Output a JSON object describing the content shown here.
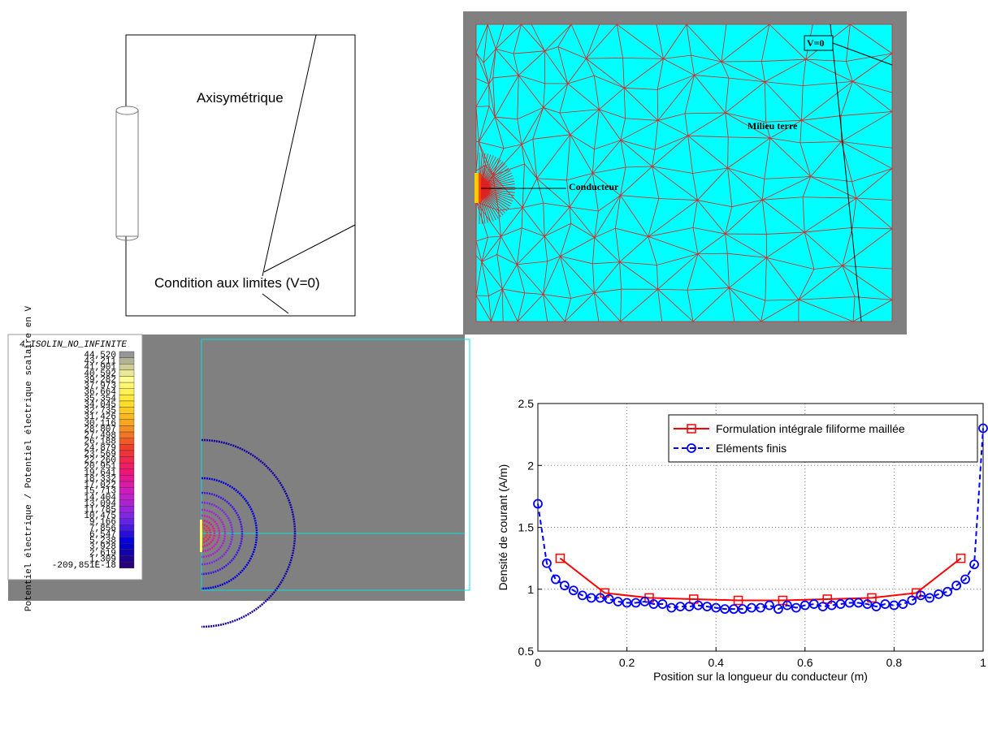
{
  "diagram": {
    "title": "Axisymétrique",
    "boundary_label": "Condition aux limites (V=0)"
  },
  "mesh": {
    "boundary_label": "V=0",
    "medium_label": "Milieu terre",
    "conductor_label": "Conducteur"
  },
  "colorbar": {
    "title": "4_ISOLIN_NO_INFINITE",
    "label": "Potentiel électrique / Potentiel électrique scalaire en V",
    "labels": [
      "44,520",
      "43,211",
      "41,901",
      "40,592",
      "39,282",
      "37,973",
      "36,664",
      "35,354",
      "34,045",
      "32,735",
      "31,426",
      "30,116",
      "28,807",
      "27,498",
      "26,188",
      "24,879",
      "23,569",
      "22,260",
      "20,951",
      "19,641",
      "18,332",
      "17,022",
      "15,713",
      "14,404",
      "13,094",
      "11,785",
      "10,475",
      "9,166",
      "7,856",
      "6,547",
      "5,238",
      "3,928",
      "2,619",
      "1,309",
      "-209,851E-18"
    ]
  },
  "chart_data": {
    "type": "line",
    "xlabel": "Position sur la longueur du conducteur (m)",
    "ylabel": "Densité de courant (A/m)",
    "xlim": [
      0,
      1
    ],
    "ylim": [
      0.5,
      2.5
    ],
    "xticks": [
      0,
      0.2,
      0.4,
      0.6,
      0.8,
      1
    ],
    "yticks": [
      0.5,
      1,
      1.5,
      2,
      2.5
    ],
    "grid": true,
    "legend": "upper right",
    "series": [
      {
        "name": "Formulation intégrale filiforme maillée",
        "color": "#ff0000",
        "marker": "square",
        "linestyle": "solid",
        "x": [
          0.05,
          0.15,
          0.25,
          0.35,
          0.45,
          0.55,
          0.65,
          0.75,
          0.85,
          0.95
        ],
        "values": [
          1.25,
          0.97,
          0.93,
          0.92,
          0.91,
          0.91,
          0.92,
          0.93,
          0.97,
          1.25
        ]
      },
      {
        "name": "Eléments finis",
        "color": "#0000ff",
        "marker": "circle",
        "linestyle": "dashed",
        "x": [
          0,
          0.02,
          0.04,
          0.06,
          0.08,
          0.1,
          0.12,
          0.14,
          0.16,
          0.18,
          0.2,
          0.22,
          0.24,
          0.26,
          0.28,
          0.3,
          0.32,
          0.34,
          0.36,
          0.38,
          0.4,
          0.42,
          0.44,
          0.46,
          0.48,
          0.5,
          0.52,
          0.54,
          0.56,
          0.58,
          0.6,
          0.62,
          0.64,
          0.66,
          0.68,
          0.7,
          0.72,
          0.74,
          0.76,
          0.78,
          0.8,
          0.82,
          0.84,
          0.86,
          0.88,
          0.9,
          0.92,
          0.94,
          0.96,
          0.98,
          1
        ],
        "values": [
          1.69,
          1.21,
          1.08,
          1.03,
          0.99,
          0.95,
          0.93,
          0.93,
          0.92,
          0.9,
          0.89,
          0.89,
          0.9,
          0.88,
          0.88,
          0.85,
          0.86,
          0.86,
          0.87,
          0.86,
          0.85,
          0.84,
          0.84,
          0.84,
          0.85,
          0.85,
          0.87,
          0.84,
          0.87,
          0.85,
          0.87,
          0.88,
          0.86,
          0.87,
          0.88,
          0.89,
          0.89,
          0.88,
          0.86,
          0.88,
          0.87,
          0.88,
          0.91,
          0.95,
          0.93,
          0.96,
          0.98,
          1.03,
          1.08,
          1.2,
          2.3
        ]
      }
    ]
  }
}
